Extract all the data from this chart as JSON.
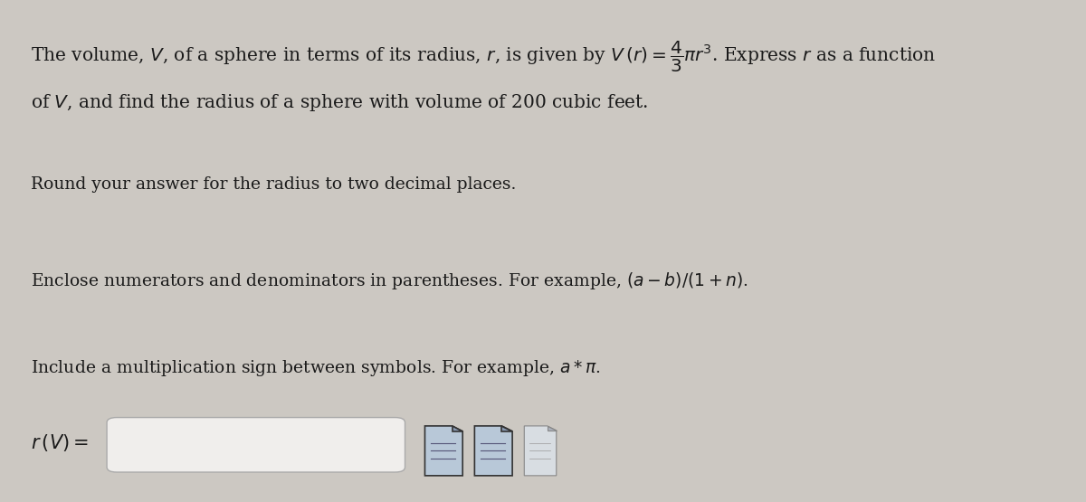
{
  "bg_color": "#ccc8c2",
  "text_color": "#1a1a1a",
  "title_line1": "The volume, $V$, of a sphere in terms of its radius, $r$, is given by $V\\,(r) = \\dfrac{4}{3}\\pi r^3$. Express $r$ as a function",
  "title_line2": "of $V$, and find the radius of a sphere with volume of 200 cubic feet.",
  "instruction1": "Round your answer for the radius to two decimal places.",
  "instruction2": "Enclose numerators and denominators in parentheses. For example, $(a - b)/(1 + n)$.",
  "instruction3": "Include a multiplication sign between symbols. For example, $a * \\pi$.",
  "label": "$r\\,(V) =$",
  "font_size_main": 14.5,
  "font_size_inst": 13.5,
  "font_size_label": 15
}
